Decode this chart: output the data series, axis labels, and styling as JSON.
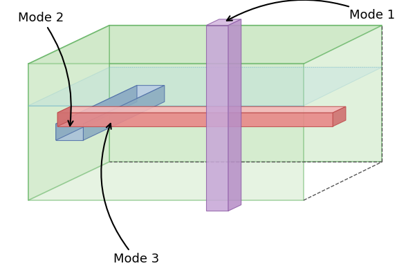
{
  "background_color": "#ffffff",
  "box": {
    "outer_fill": "#c8e6c0",
    "outer_edge": "#4da84d",
    "inner_fill": "#add8e6",
    "inner_edge": "#7bbccc"
  },
  "colors": {
    "red_top": "#f5b8b8",
    "red_front": "#e88888",
    "red_side": "#d07070",
    "red_edge": "#c05050",
    "purple_top": "#d4b8e0",
    "purple_front": "#c8a8d8",
    "purple_side": "#b890c8",
    "purple_edge": "#9060a8",
    "blue_top": "#b8cce4",
    "blue_front": "#a8c0d8",
    "blue_side": "#8aaac0",
    "blue_edge": "#5070a8"
  },
  "labels": {
    "mode1": "Mode 1",
    "mode2": "Mode 2",
    "mode3": "Mode 3"
  }
}
